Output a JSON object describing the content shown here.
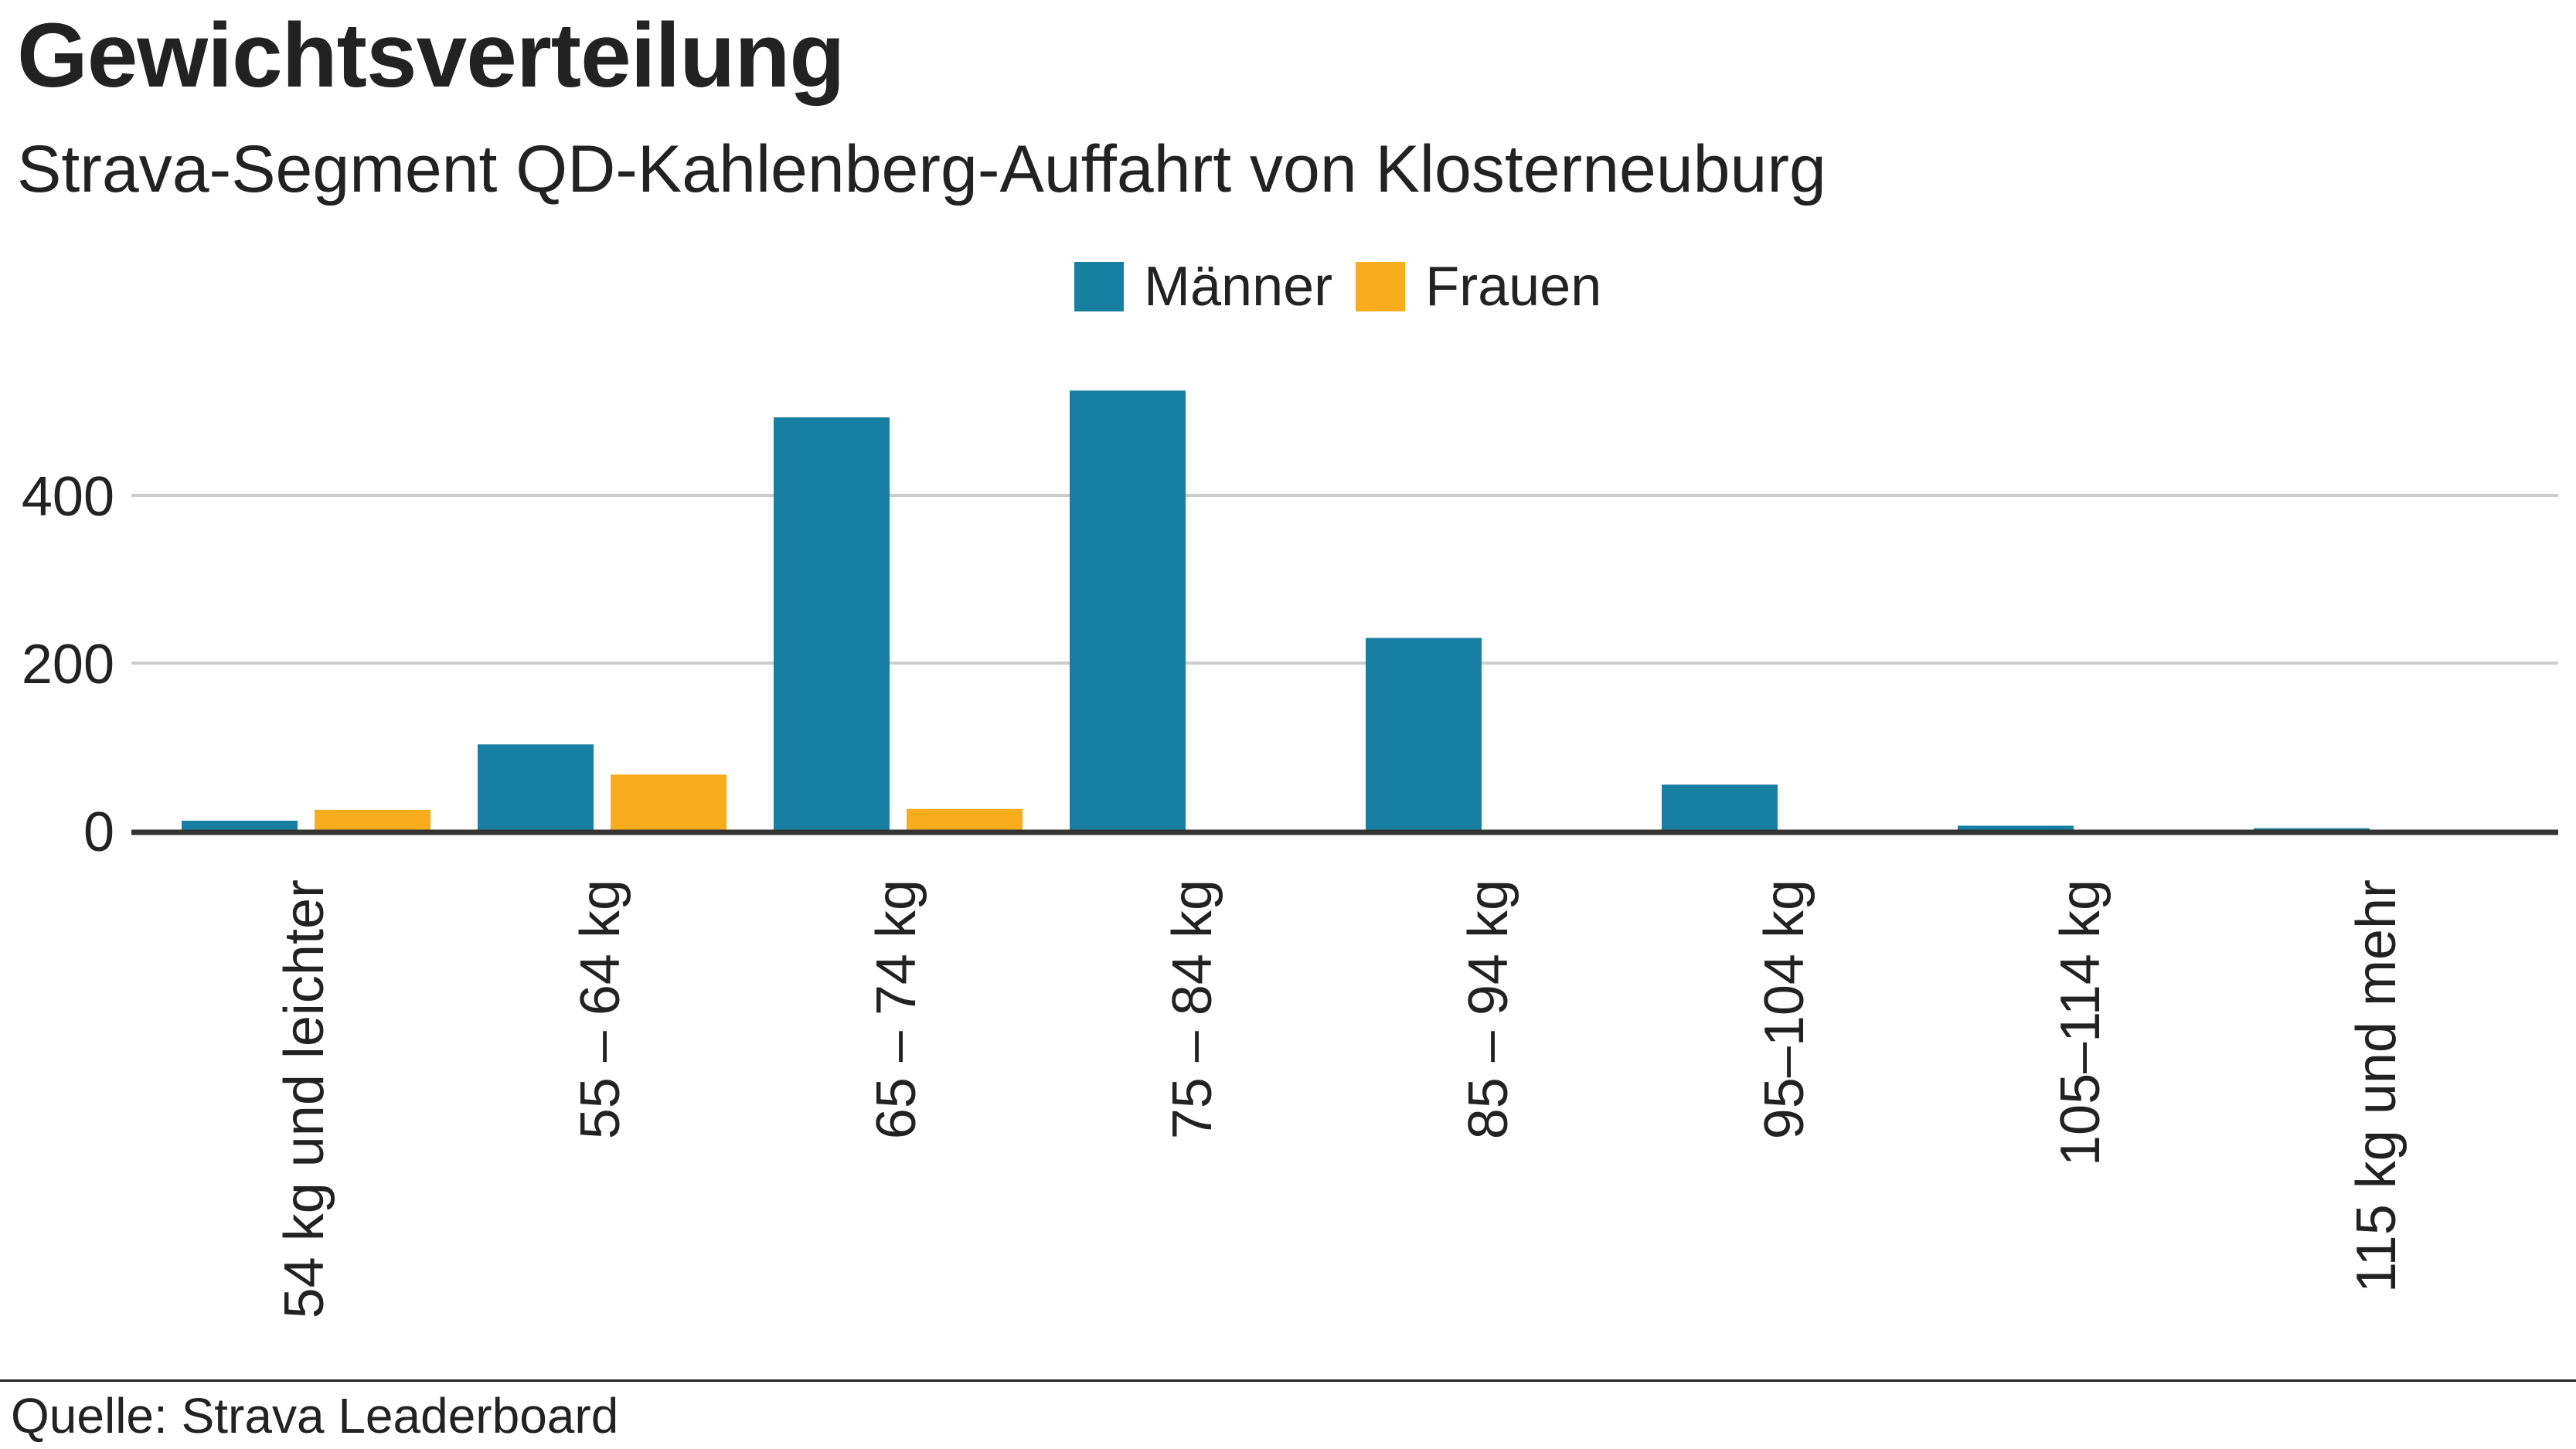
{
  "header": {
    "title": "Gewichtsverteilung",
    "subtitle": "Strava-Segment QD-Kahlenberg-Auffahrt von Klosterneuburg"
  },
  "footer": {
    "source": "Quelle: Strava Leaderboard"
  },
  "colors": {
    "maenner": "#177fa1",
    "frauen": "#f9ac1c",
    "grid": "#cccccc",
    "axis": "#333333",
    "text": "#222222"
  },
  "chart_data": {
    "type": "bar",
    "title": "Gewichtsverteilung",
    "subtitle": "Strava-Segment QD-Kahlenberg-Auffahrt von Klosterneuburg",
    "categories": [
      "54 kg und leichter",
      "55 – 64 kg",
      "65 – 74 kg",
      "75 – 84 kg",
      "85 – 94 kg",
      "95–104 kg",
      "105–114 kg",
      "115 kg und mehr"
    ],
    "series": [
      {
        "name": "Männer",
        "color": "#177fa1",
        "values": [
          12,
          103,
          493,
          525,
          230,
          55,
          6,
          3
        ]
      },
      {
        "name": "Frauen",
        "color": "#f9ac1c",
        "values": [
          25,
          67,
          26,
          0,
          0,
          0,
          0,
          0
        ]
      }
    ],
    "yticks": [
      0,
      200,
      400
    ],
    "ylim": [
      0,
      540
    ],
    "xlabel": "",
    "ylabel": "",
    "grid": true,
    "legend": "top-center"
  }
}
